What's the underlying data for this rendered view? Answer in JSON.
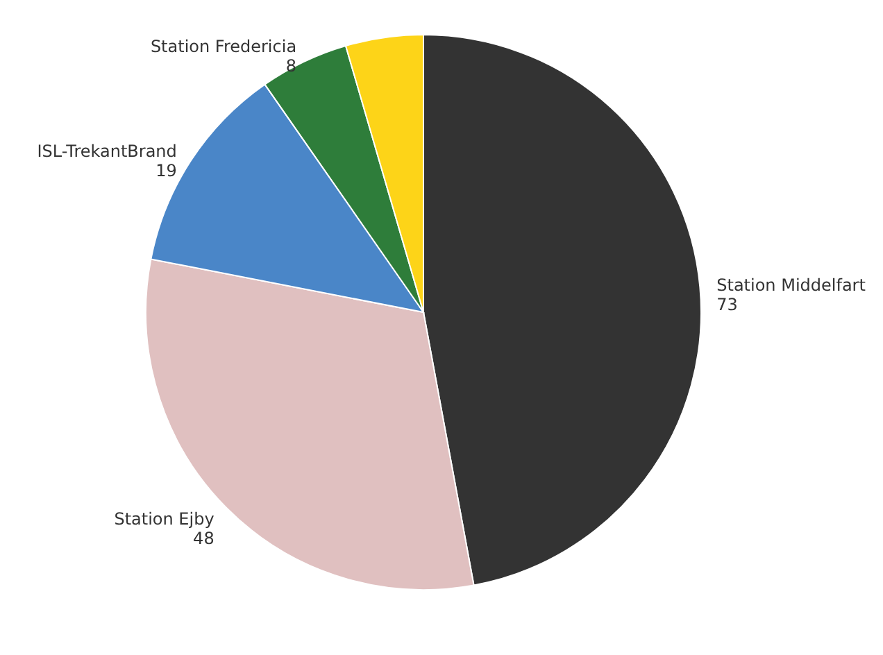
{
  "chart_data": {
    "type": "pie",
    "categories": [
      "Station Middelfart",
      "Station Ejby",
      "ISL-TrekantBrand",
      "Station Fredericia",
      null
    ],
    "values": [
      73,
      48,
      19,
      8,
      7
    ],
    "colors": [
      "#333333",
      "#e0c0c0",
      "#4a86c8",
      "#2e7d3a",
      "#fdd418"
    ],
    "value_labels": [
      "73",
      "48",
      "19",
      "8",
      null
    ],
    "legend": false
  }
}
